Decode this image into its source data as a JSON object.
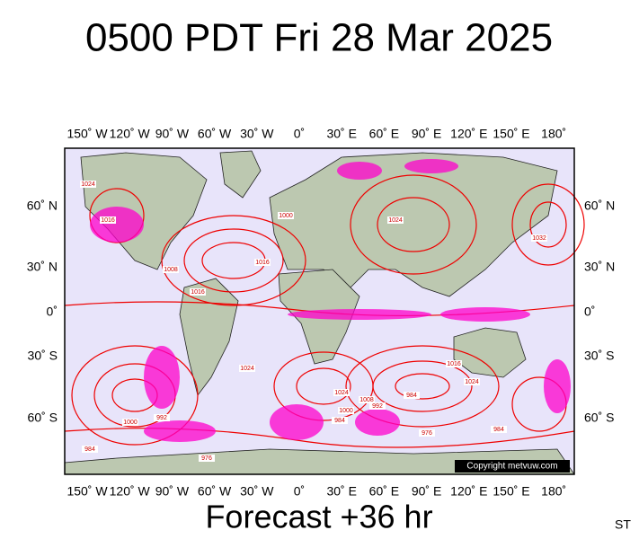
{
  "header": {
    "title": "0500 PDT Fri 28 Mar 2025"
  },
  "map": {
    "top_lon_labels": [
      "150˚ W",
      "120˚ W",
      "90˚ W",
      "60˚ W",
      "30˚ W",
      "0˚",
      "30˚ E",
      "60˚ E",
      "90˚ E",
      "120˚ E",
      "150˚ E",
      "180˚"
    ],
    "bottom_lon_labels": [
      "150˚ W",
      "120˚ W",
      "90˚ W",
      "60˚ W",
      "30˚ W",
      "0˚",
      "30˚ E",
      "60˚ E",
      "90˚ E",
      "120˚ E",
      "150˚ E",
      "180˚"
    ],
    "left_lat_labels": [
      "60˚ N",
      "30˚ N",
      "0˚",
      "30˚ S",
      "60˚ S"
    ],
    "right_lat_labels": [
      "60˚ N",
      "30˚ N",
      "0˚",
      "30˚ S",
      "60˚ S"
    ],
    "isobar_labels": [
      "1024",
      "1016",
      "1008",
      "1016",
      "1024",
      "1032",
      "1016",
      "1000",
      "1024",
      "1008",
      "1000",
      "984",
      "992",
      "984",
      "976",
      "1016",
      "1024",
      "1000",
      "992",
      "984",
      "976",
      "984",
      "1024"
    ],
    "copyright": "Copyright metvuw.com"
  },
  "footer": {
    "forecast": "Forecast +36 hr",
    "code": "ST"
  }
}
